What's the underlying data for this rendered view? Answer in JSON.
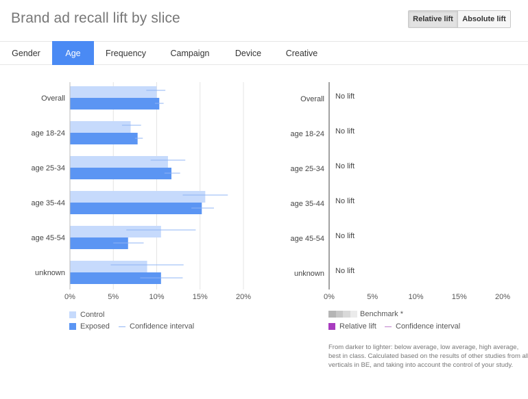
{
  "header": {
    "title": "Brand ad recall lift by slice",
    "toggle": {
      "relative_label": "Relative lift",
      "absolute_label": "Absolute lift",
      "selected": "Relative lift"
    }
  },
  "tabs": [
    {
      "label": "Gender",
      "active": false
    },
    {
      "label": "Age",
      "active": true
    },
    {
      "label": "Frequency",
      "active": false
    },
    {
      "label": "Campaign",
      "active": false
    },
    {
      "label": "Device",
      "active": false
    },
    {
      "label": "Creative",
      "active": false
    }
  ],
  "colors": {
    "control": "#c6dafc",
    "exposed": "#5b95f3",
    "ci_line": "#8fb4f5",
    "relative_lift": "#a83cbf",
    "relative_ci": "#c080cc",
    "grid": "#e4e4e4",
    "tab_active": "#4a8af4"
  },
  "chart_data": [
    {
      "type": "bar",
      "orientation": "horizontal",
      "categories": [
        "Overall",
        "age 18-24",
        "age 25-34",
        "age 35-44",
        "age 45-54",
        "unknown"
      ],
      "series": [
        {
          "name": "Control",
          "values": [
            10.0,
            7.0,
            11.3,
            15.6,
            10.5,
            8.9
          ],
          "ci": [
            [
              8.8,
              11.0
            ],
            [
              6.0,
              8.2
            ],
            [
              9.3,
              13.3
            ],
            [
              13.0,
              18.2
            ],
            [
              6.5,
              14.5
            ],
            [
              4.7,
              13.1
            ]
          ]
        },
        {
          "name": "Exposed",
          "values": [
            10.3,
            7.8,
            11.7,
            15.2,
            6.7,
            10.5
          ],
          "ci": [
            [
              9.8,
              10.8
            ],
            [
              7.5,
              8.4
            ],
            [
              10.9,
              12.7
            ],
            [
              14.0,
              16.6
            ],
            [
              5.0,
              8.5
            ],
            [
              8.1,
              13.0
            ]
          ]
        }
      ],
      "xlim": [
        0,
        20
      ],
      "ticks": [
        "0%",
        "5%",
        "10%",
        "15%",
        "20%"
      ],
      "grid": true,
      "legend": [
        {
          "label": "Control"
        },
        {
          "label": "Exposed"
        },
        {
          "label": "Confidence interval"
        }
      ]
    },
    {
      "type": "bar",
      "orientation": "horizontal",
      "categories": [
        "Overall",
        "age 18-24",
        "age 25-34",
        "age 35-44",
        "age 45-54",
        "unknown"
      ],
      "series": [
        {
          "name": "Relative lift",
          "values": [
            null,
            null,
            null,
            null,
            null,
            null
          ]
        }
      ],
      "row_labels": [
        "No lift",
        "No lift",
        "No lift",
        "No lift",
        "No lift",
        "No lift"
      ],
      "xlim": [
        0,
        20
      ],
      "ticks": [
        "0%",
        "5%",
        "10%",
        "15%",
        "20%"
      ],
      "grid": false,
      "legend": [
        {
          "label": "Benchmark *"
        },
        {
          "label": "Relative lift"
        },
        {
          "label": "Confidence interval"
        }
      ],
      "benchmark_shades": [
        "#b5b5b5",
        "#c7c7c7",
        "#d9d9d9",
        "#ebebeb"
      ],
      "note": "From darker to lighter: below average, low average, high average, best in class. Calculated based on the results of other studies from all verticals in BE, and taking into account the control of your study."
    }
  ]
}
